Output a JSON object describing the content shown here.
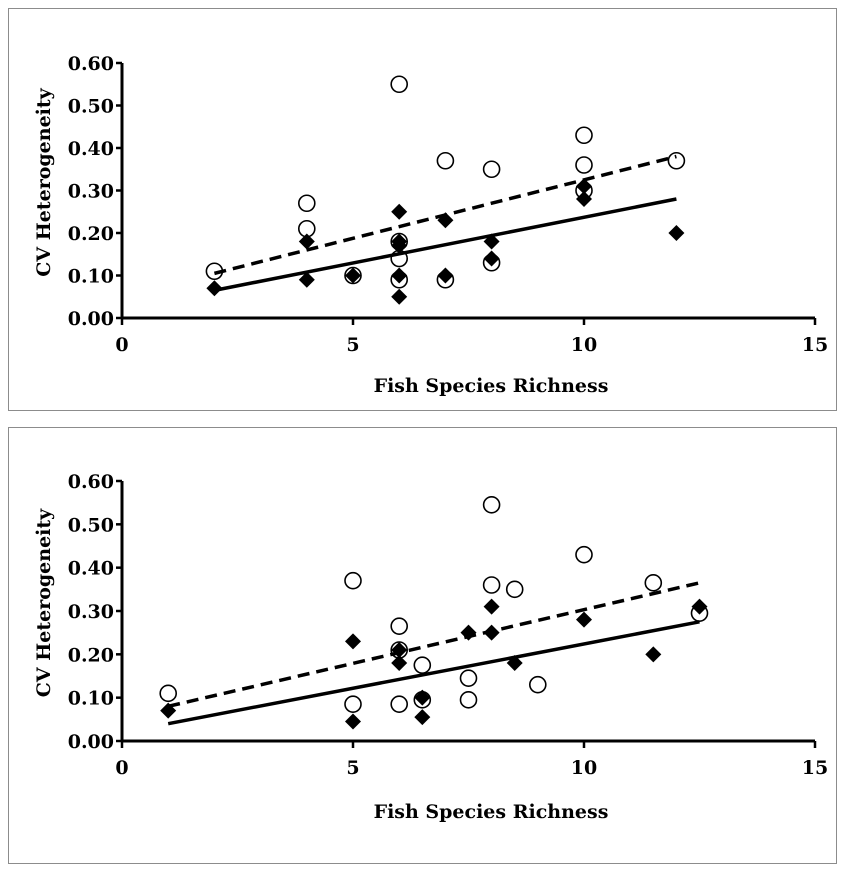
{
  "chart_data": [
    {
      "type": "scatter",
      "xlabel": "Fish Species Richness",
      "ylabel": "CV Heterogeneity",
      "xlim": [
        0,
        15
      ],
      "ylim": [
        0,
        0.6
      ],
      "xticks": [
        "0",
        "5",
        "10",
        "15"
      ],
      "yticks": [
        "0.00",
        "0.10",
        "0.20",
        "0.30",
        "0.40",
        "0.50",
        "0.60"
      ],
      "grid": false,
      "legend": "none",
      "series": [
        {
          "marker": "filled-diamond",
          "color": "#000000",
          "points": [
            [
              2,
              0.07
            ],
            [
              4,
              0.18
            ],
            [
              4,
              0.09
            ],
            [
              5,
              0.1
            ],
            [
              6,
              0.25
            ],
            [
              6,
              0.18
            ],
            [
              6,
              0.17
            ],
            [
              6,
              0.1
            ],
            [
              6,
              0.05
            ],
            [
              7,
              0.23
            ],
            [
              7,
              0.1
            ],
            [
              8,
              0.18
            ],
            [
              8,
              0.14
            ],
            [
              10,
              0.31
            ],
            [
              10,
              0.28
            ],
            [
              12,
              0.2
            ]
          ],
          "trendline": {
            "style": "solid",
            "from": [
              2,
              0.065
            ],
            "to": [
              12,
              0.28
            ]
          }
        },
        {
          "marker": "open-circle",
          "color": "#000000",
          "points": [
            [
              2,
              0.11
            ],
            [
              4,
              0.27
            ],
            [
              4,
              0.21
            ],
            [
              5,
              0.1
            ],
            [
              6,
              0.55
            ],
            [
              6,
              0.18
            ],
            [
              6,
              0.14
            ],
            [
              6,
              0.09
            ],
            [
              7,
              0.37
            ],
            [
              7,
              0.09
            ],
            [
              8,
              0.35
            ],
            [
              8,
              0.13
            ],
            [
              10,
              0.43
            ],
            [
              10,
              0.36
            ],
            [
              10,
              0.3
            ],
            [
              12,
              0.37
            ]
          ],
          "trendline": {
            "style": "dashed",
            "from": [
              2,
              0.105
            ],
            "to": [
              12,
              0.38
            ]
          }
        }
      ]
    },
    {
      "type": "scatter",
      "xlabel": "Fish Species Richness",
      "ylabel": "CV Heterogeneity",
      "xlim": [
        0,
        15
      ],
      "ylim": [
        0,
        0.6
      ],
      "xticks": [
        "0",
        "5",
        "10",
        "15"
      ],
      "yticks": [
        "0.00",
        "0.10",
        "0.20",
        "0.30",
        "0.40",
        "0.50",
        "0.60"
      ],
      "grid": false,
      "legend": "none",
      "series": [
        {
          "marker": "filled-diamond",
          "color": "#000000",
          "points": [
            [
              1,
              0.07
            ],
            [
              5,
              0.23
            ],
            [
              5,
              0.045
            ],
            [
              6,
              0.18
            ],
            [
              6,
              0.21
            ],
            [
              6.5,
              0.1
            ],
            [
              6.5,
              0.055
            ],
            [
              7.5,
              0.25
            ],
            [
              8,
              0.31
            ],
            [
              8,
              0.25
            ],
            [
              8.5,
              0.18
            ],
            [
              10,
              0.28
            ],
            [
              11.5,
              0.2
            ],
            [
              12.5,
              0.31
            ]
          ],
          "trendline": {
            "style": "solid",
            "from": [
              1,
              0.04
            ],
            "to": [
              12.5,
              0.275
            ]
          }
        },
        {
          "marker": "open-circle",
          "color": "#000000",
          "points": [
            [
              1,
              0.11
            ],
            [
              5,
              0.37
            ],
            [
              5,
              0.085
            ],
            [
              6,
              0.265
            ],
            [
              6,
              0.21
            ],
            [
              6,
              0.085
            ],
            [
              6.5,
              0.175
            ],
            [
              6.5,
              0.095
            ],
            [
              7.5,
              0.145
            ],
            [
              7.5,
              0.095
            ],
            [
              8,
              0.545
            ],
            [
              8,
              0.36
            ],
            [
              8.5,
              0.35
            ],
            [
              9,
              0.13
            ],
            [
              10,
              0.43
            ],
            [
              11.5,
              0.365
            ],
            [
              12.5,
              0.295
            ]
          ],
          "trendline": {
            "style": "dashed",
            "from": [
              1,
              0.08
            ],
            "to": [
              12.5,
              0.365
            ]
          }
        }
      ]
    }
  ]
}
